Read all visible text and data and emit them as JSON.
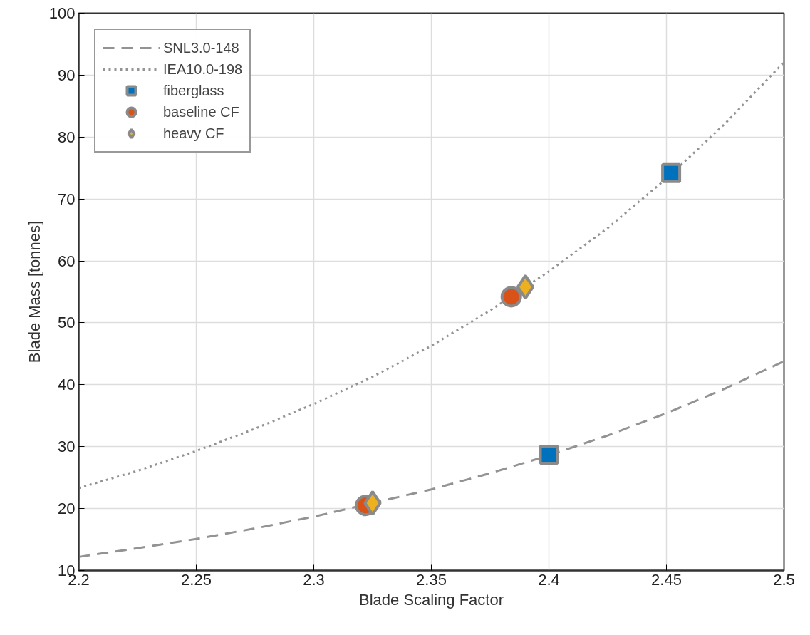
{
  "chart_data": {
    "type": "line",
    "xlabel": "Blade Scaling Factor",
    "ylabel": "Blade Mass [tonnes]",
    "xlim": [
      2.2,
      2.5
    ],
    "ylim": [
      10,
      100
    ],
    "xticks": [
      2.2,
      2.25,
      2.3,
      2.35,
      2.4,
      2.45,
      2.5
    ],
    "yticks": [
      10,
      20,
      30,
      40,
      50,
      60,
      70,
      80,
      90,
      100
    ],
    "grid": true,
    "legend": "top left",
    "series": [
      {
        "name": "SNL3.0-148",
        "line_style": "dashed",
        "marker": "none",
        "color": "#939393",
        "x": [
          2.2,
          2.225,
          2.25,
          2.275,
          2.3,
          2.35,
          2.375,
          2.4,
          2.425,
          2.45,
          2.475,
          2.5
        ],
        "values": [
          12.2,
          13.6,
          15.1,
          16.8,
          18.7,
          23.1,
          25.7,
          28.6,
          31.8,
          35.4,
          39.4,
          43.8
        ]
      },
      {
        "name": "IEA10.0-198",
        "line_style": "dotted",
        "marker": "none",
        "color": "#939393",
        "x": [
          2.2,
          2.225,
          2.25,
          2.275,
          2.3,
          2.325,
          2.35,
          2.375,
          2.4,
          2.425,
          2.45,
          2.475,
          2.5
        ],
        "values": [
          23.3,
          26.1,
          29.3,
          32.9,
          36.9,
          41.3,
          46.3,
          52.0,
          58.3,
          65.3,
          73.3,
          82.2,
          92.1
        ]
      },
      {
        "name": "fiberglass",
        "type": "scatter",
        "marker": "square",
        "color": "#0072bd",
        "x": [
          2.4,
          2.452
        ],
        "values": [
          28.7,
          74.2
        ]
      },
      {
        "name": "baseline CF",
        "type": "scatter",
        "marker": "circle",
        "color": "#d95319",
        "x": [
          2.322,
          2.384
        ],
        "values": [
          20.5,
          54.2
        ]
      },
      {
        "name": "heavy CF",
        "type": "scatter",
        "marker": "diamond",
        "color": "#edb120",
        "x": [
          2.325,
          2.39
        ],
        "values": [
          20.9,
          55.8
        ]
      }
    ]
  }
}
